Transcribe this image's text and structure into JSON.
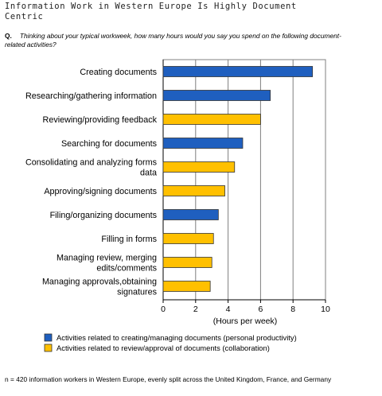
{
  "title": "Information Work in Western Europe Is Highly Document Centric",
  "question": {
    "label": "Q.",
    "text": "Thinking about your typical workweek, how many hours would you say you spend on the following document-related activities?"
  },
  "footnote": "n = 420 information workers in Western Europe, evenly split across the United Kingdom, France, and Germany",
  "colors": {
    "personal": "#1f5fbf",
    "collaboration": "#ffc000",
    "edge": "#333333"
  },
  "chart_data": {
    "type": "bar",
    "orientation": "horizontal",
    "xlabel": "(Hours per week)",
    "xlim": [
      0,
      10
    ],
    "xticks": [
      0,
      2,
      4,
      6,
      8,
      10
    ],
    "grid": true,
    "legend_position": "bottom",
    "legend": [
      {
        "key": "personal",
        "label": "Activities related to creating/managing documents (personal productivity)"
      },
      {
        "key": "collaboration",
        "label": "Activities related to review/approval of documents (collaboration)"
      }
    ],
    "bars": [
      {
        "category": [
          "Creating documents"
        ],
        "value": 9.2,
        "group": "personal"
      },
      {
        "category": [
          "Researching/gathering information"
        ],
        "value": 6.6,
        "group": "personal"
      },
      {
        "category": [
          "Reviewing/providing feedback"
        ],
        "value": 6.0,
        "group": "collaboration"
      },
      {
        "category": [
          "Searching for documents"
        ],
        "value": 4.9,
        "group": "personal"
      },
      {
        "category": [
          "Consolidating and analyzing forms",
          "data"
        ],
        "value": 4.4,
        "group": "collaboration"
      },
      {
        "category": [
          "Approving/signing documents"
        ],
        "value": 3.8,
        "group": "collaboration"
      },
      {
        "category": [
          "Filing/organizing documents"
        ],
        "value": 3.4,
        "group": "personal"
      },
      {
        "category": [
          "Filling in forms"
        ],
        "value": 3.1,
        "group": "collaboration"
      },
      {
        "category": [
          "Managing review, merging",
          "edits/comments"
        ],
        "value": 3.0,
        "group": "collaboration"
      },
      {
        "category": [
          "Managing approvals,obtaining",
          "signatures"
        ],
        "value": 2.9,
        "group": "collaboration"
      }
    ]
  }
}
